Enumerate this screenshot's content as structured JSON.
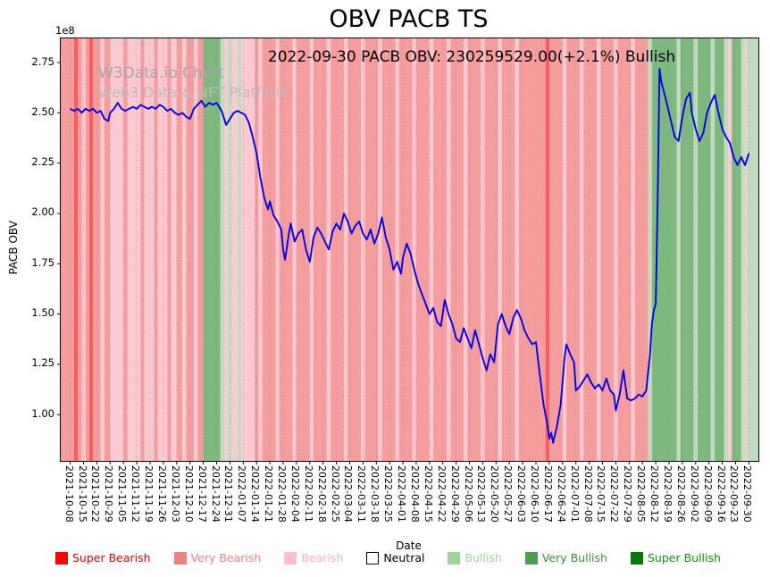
{
  "title": "OBV PACB TS",
  "annotation": "2022-09-30 PACB OBV: 230259529.00(+2.1%) Bullish",
  "watermark": {
    "line1": "W3Data.io Chart",
    "line2": "Web3 Data & NFT Platform"
  },
  "axes": {
    "ylabel": "PACB OBV",
    "xlabel": "Date",
    "offset_label": "1e8"
  },
  "legend": [
    {
      "label": "Super Bearish",
      "color": "#ff0000",
      "text_color": "#e60000"
    },
    {
      "label": "Very Bearish",
      "color": "#f08080",
      "text_color": "#f08080"
    },
    {
      "label": "Bearish",
      "color": "#ffc0cb",
      "text_color": "#ffaebc"
    },
    {
      "label": "Neutral",
      "color": "#ffffff",
      "text_color": "#000000"
    },
    {
      "label": "Bullish",
      "color": "#9fd49f",
      "text_color": "#9fd49f"
    },
    {
      "label": "Very Bullish",
      "color": "#4d9d4d",
      "text_color": "#3c8c3c"
    },
    {
      "label": "Super Bullish",
      "color": "#007d00",
      "text_color": "#0a960a"
    }
  ],
  "chart_data": {
    "type": "line",
    "title": "OBV PACB TS",
    "xlabel": "Date",
    "ylabel": "PACB OBV",
    "y_scale": "1e8",
    "line_color": "#0000ee",
    "grid": "vertical-dotted",
    "xlim": [
      -5,
      362
    ],
    "ylim": [
      0.77,
      2.87
    ],
    "yticks": [
      2.75,
      2.5,
      2.25,
      2.0,
      1.75,
      1.5,
      1.25,
      1.0
    ],
    "xtick_interval_days": 7,
    "xtick_labels": [
      "2021-10-08",
      "2021-10-15",
      "2021-10-22",
      "2021-10-29",
      "2021-11-05",
      "2021-11-12",
      "2021-11-19",
      "2021-11-26",
      "2021-12-03",
      "2021-12-10",
      "2021-12-17",
      "2021-12-24",
      "2021-12-31",
      "2022-01-07",
      "2022-01-14",
      "2022-01-21",
      "2022-01-28",
      "2022-02-04",
      "2022-02-11",
      "2022-02-18",
      "2022-02-25",
      "2022-03-04",
      "2022-03-11",
      "2022-03-18",
      "2022-03-25",
      "2022-04-01",
      "2022-04-08",
      "2022-04-15",
      "2022-04-22",
      "2022-04-29",
      "2022-05-06",
      "2022-05-13",
      "2022-05-20",
      "2022-05-27",
      "2022-06-03",
      "2022-06-10",
      "2022-06-17",
      "2022-06-24",
      "2022-07-01",
      "2022-07-08",
      "2022-07-15",
      "2022-07-22",
      "2022-07-29",
      "2022-08-05",
      "2022-08-12",
      "2022-08-19",
      "2022-08-26",
      "2022-09-02",
      "2022-09-09",
      "2022-09-16",
      "2022-09-23",
      "2022-09-30"
    ],
    "band_colors": {
      "super_bearish": "#ff5a5a",
      "very_bearish": "#f59c9c",
      "bearish": "#fbc9d0",
      "neutral": "#ffffff",
      "bullish": "#c0ddc0",
      "very_bullish": "#7db87d",
      "super_bullish": "#339933"
    },
    "bands": [
      [
        -5,
        2,
        "very_bearish"
      ],
      [
        2,
        4,
        "super_bearish"
      ],
      [
        4,
        6,
        "very_bearish"
      ],
      [
        6,
        8,
        "bearish"
      ],
      [
        8,
        10,
        "very_bearish"
      ],
      [
        10,
        12,
        "super_bearish"
      ],
      [
        12,
        16,
        "very_bearish"
      ],
      [
        16,
        18,
        "bearish"
      ],
      [
        18,
        21,
        "very_bearish"
      ],
      [
        21,
        28,
        "bearish"
      ],
      [
        28,
        30,
        "very_bearish"
      ],
      [
        30,
        37,
        "bearish"
      ],
      [
        37,
        39,
        "very_bearish"
      ],
      [
        39,
        44,
        "bearish"
      ],
      [
        44,
        46,
        "very_bearish"
      ],
      [
        46,
        51,
        "bearish"
      ],
      [
        51,
        53,
        "very_bearish"
      ],
      [
        53,
        56,
        "bearish"
      ],
      [
        56,
        59,
        "very_bearish"
      ],
      [
        59,
        61,
        "bearish"
      ],
      [
        61,
        65,
        "very_bearish"
      ],
      [
        65,
        67,
        "bearish"
      ],
      [
        67,
        70,
        "very_bearish"
      ],
      [
        70,
        79,
        "very_bullish"
      ],
      [
        79,
        81,
        "bullish"
      ],
      [
        81,
        83,
        "bearish"
      ],
      [
        83,
        85,
        "bullish"
      ],
      [
        85,
        88,
        "bearish"
      ],
      [
        88,
        90,
        "bullish"
      ],
      [
        90,
        97,
        "bearish"
      ],
      [
        97,
        99,
        "very_bearish"
      ],
      [
        99,
        101,
        "bearish"
      ],
      [
        101,
        108,
        "very_bearish"
      ],
      [
        108,
        110,
        "bearish"
      ],
      [
        110,
        117,
        "very_bearish"
      ],
      [
        117,
        119,
        "bearish"
      ],
      [
        119,
        126,
        "very_bearish"
      ],
      [
        126,
        128,
        "bearish"
      ],
      [
        128,
        135,
        "very_bearish"
      ],
      [
        135,
        137,
        "bearish"
      ],
      [
        137,
        144,
        "very_bearish"
      ],
      [
        144,
        146,
        "bearish"
      ],
      [
        146,
        153,
        "very_bearish"
      ],
      [
        153,
        155,
        "bearish"
      ],
      [
        155,
        162,
        "very_bearish"
      ],
      [
        162,
        164,
        "bearish"
      ],
      [
        164,
        171,
        "very_bearish"
      ],
      [
        171,
        173,
        "bearish"
      ],
      [
        173,
        180,
        "very_bearish"
      ],
      [
        180,
        182,
        "bearish"
      ],
      [
        182,
        189,
        "very_bearish"
      ],
      [
        189,
        191,
        "bearish"
      ],
      [
        191,
        198,
        "very_bearish"
      ],
      [
        198,
        200,
        "bearish"
      ],
      [
        200,
        207,
        "very_bearish"
      ],
      [
        207,
        209,
        "bearish"
      ],
      [
        209,
        216,
        "very_bearish"
      ],
      [
        216,
        218,
        "bearish"
      ],
      [
        218,
        225,
        "very_bearish"
      ],
      [
        225,
        227,
        "bearish"
      ],
      [
        227,
        234,
        "very_bearish"
      ],
      [
        234,
        236,
        "bearish"
      ],
      [
        236,
        250,
        "very_bearish"
      ],
      [
        250,
        252,
        "super_bearish"
      ],
      [
        252,
        259,
        "very_bearish"
      ],
      [
        259,
        261,
        "bearish"
      ],
      [
        261,
        268,
        "very_bearish"
      ],
      [
        268,
        270,
        "bearish"
      ],
      [
        270,
        277,
        "very_bearish"
      ],
      [
        277,
        279,
        "bearish"
      ],
      [
        279,
        286,
        "very_bearish"
      ],
      [
        286,
        288,
        "bearish"
      ],
      [
        288,
        295,
        "very_bearish"
      ],
      [
        295,
        297,
        "bearish"
      ],
      [
        297,
        304,
        "very_bearish"
      ],
      [
        304,
        306,
        "bullish"
      ],
      [
        306,
        319,
        "very_bullish"
      ],
      [
        319,
        321,
        "bullish"
      ],
      [
        321,
        328,
        "very_bullish"
      ],
      [
        328,
        330,
        "bullish"
      ],
      [
        330,
        337,
        "very_bullish"
      ],
      [
        337,
        339,
        "bullish"
      ],
      [
        339,
        344,
        "very_bullish"
      ],
      [
        344,
        346,
        "bullish"
      ],
      [
        346,
        348,
        "bearish"
      ],
      [
        348,
        353,
        "very_bullish"
      ],
      [
        353,
        355,
        "bullish"
      ],
      [
        355,
        356,
        "bearish"
      ],
      [
        356,
        362,
        "bullish"
      ]
    ],
    "points": [
      [
        0,
        2.52
      ],
      [
        2,
        2.51
      ],
      [
        4,
        2.52
      ],
      [
        6,
        2.5
      ],
      [
        8,
        2.52
      ],
      [
        10,
        2.51
      ],
      [
        12,
        2.52
      ],
      [
        14,
        2.5
      ],
      [
        16,
        2.51
      ],
      [
        18,
        2.47
      ],
      [
        20,
        2.46
      ],
      [
        21,
        2.5
      ],
      [
        23,
        2.52
      ],
      [
        25,
        2.55
      ],
      [
        27,
        2.52
      ],
      [
        29,
        2.51
      ],
      [
        31,
        2.52
      ],
      [
        33,
        2.53
      ],
      [
        35,
        2.52
      ],
      [
        37,
        2.54
      ],
      [
        39,
        2.53
      ],
      [
        41,
        2.52
      ],
      [
        43,
        2.53
      ],
      [
        45,
        2.52
      ],
      [
        47,
        2.54
      ],
      [
        49,
        2.53
      ],
      [
        51,
        2.51
      ],
      [
        53,
        2.52
      ],
      [
        55,
        2.5
      ],
      [
        57,
        2.49
      ],
      [
        59,
        2.5
      ],
      [
        61,
        2.48
      ],
      [
        63,
        2.47
      ],
      [
        65,
        2.52
      ],
      [
        67,
        2.54
      ],
      [
        69,
        2.56
      ],
      [
        71,
        2.53
      ],
      [
        73,
        2.55
      ],
      [
        75,
        2.54
      ],
      [
        77,
        2.55
      ],
      [
        79,
        2.52
      ],
      [
        80,
        2.5
      ],
      [
        82,
        2.44
      ],
      [
        84,
        2.47
      ],
      [
        86,
        2.5
      ],
      [
        88,
        2.51
      ],
      [
        90,
        2.5
      ],
      [
        92,
        2.49
      ],
      [
        94,
        2.45
      ],
      [
        96,
        2.38
      ],
      [
        98,
        2.3
      ],
      [
        100,
        2.18
      ],
      [
        102,
        2.08
      ],
      [
        104,
        2.02
      ],
      [
        105,
        2.06
      ],
      [
        107,
        1.99
      ],
      [
        109,
        1.96
      ],
      [
        111,
        1.92
      ],
      [
        112,
        1.82
      ],
      [
        113,
        1.77
      ],
      [
        115,
        1.9
      ],
      [
        116,
        1.95
      ],
      [
        118,
        1.86
      ],
      [
        120,
        1.9
      ],
      [
        122,
        1.92
      ],
      [
        124,
        1.82
      ],
      [
        126,
        1.76
      ],
      [
        128,
        1.88
      ],
      [
        130,
        1.93
      ],
      [
        132,
        1.9
      ],
      [
        134,
        1.86
      ],
      [
        136,
        1.82
      ],
      [
        138,
        1.91
      ],
      [
        140,
        1.95
      ],
      [
        142,
        1.92
      ],
      [
        144,
        2.0
      ],
      [
        146,
        1.96
      ],
      [
        148,
        1.9
      ],
      [
        150,
        1.94
      ],
      [
        152,
        1.96
      ],
      [
        154,
        1.9
      ],
      [
        156,
        1.87
      ],
      [
        158,
        1.92
      ],
      [
        160,
        1.85
      ],
      [
        162,
        1.9
      ],
      [
        164,
        1.98
      ],
      [
        166,
        1.88
      ],
      [
        168,
        1.82
      ],
      [
        170,
        1.72
      ],
      [
        172,
        1.76
      ],
      [
        174,
        1.7
      ],
      [
        175,
        1.78
      ],
      [
        177,
        1.85
      ],
      [
        179,
        1.8
      ],
      [
        181,
        1.72
      ],
      [
        183,
        1.65
      ],
      [
        185,
        1.6
      ],
      [
        187,
        1.55
      ],
      [
        189,
        1.5
      ],
      [
        191,
        1.53
      ],
      [
        193,
        1.46
      ],
      [
        195,
        1.44
      ],
      [
        197,
        1.57
      ],
      [
        199,
        1.5
      ],
      [
        201,
        1.45
      ],
      [
        203,
        1.38
      ],
      [
        205,
        1.36
      ],
      [
        207,
        1.43
      ],
      [
        209,
        1.38
      ],
      [
        211,
        1.33
      ],
      [
        213,
        1.42
      ],
      [
        215,
        1.35
      ],
      [
        217,
        1.28
      ],
      [
        219,
        1.22
      ],
      [
        221,
        1.3
      ],
      [
        223,
        1.26
      ],
      [
        225,
        1.45
      ],
      [
        227,
        1.5
      ],
      [
        229,
        1.44
      ],
      [
        231,
        1.4
      ],
      [
        233,
        1.48
      ],
      [
        235,
        1.52
      ],
      [
        237,
        1.48
      ],
      [
        239,
        1.42
      ],
      [
        241,
        1.38
      ],
      [
        243,
        1.35
      ],
      [
        245,
        1.36
      ],
      [
        247,
        1.2
      ],
      [
        249,
        1.05
      ],
      [
        251,
        0.95
      ],
      [
        252,
        0.88
      ],
      [
        253,
        0.91
      ],
      [
        254,
        0.86
      ],
      [
        256,
        0.94
      ],
      [
        258,
        1.05
      ],
      [
        260,
        1.28
      ],
      [
        261,
        1.35
      ],
      [
        263,
        1.3
      ],
      [
        265,
        1.26
      ],
      [
        266,
        1.12
      ],
      [
        268,
        1.14
      ],
      [
        270,
        1.17
      ],
      [
        272,
        1.2
      ],
      [
        274,
        1.16
      ],
      [
        276,
        1.13
      ],
      [
        278,
        1.15
      ],
      [
        280,
        1.12
      ],
      [
        282,
        1.18
      ],
      [
        284,
        1.12
      ],
      [
        286,
        1.1
      ],
      [
        287,
        1.02
      ],
      [
        289,
        1.1
      ],
      [
        291,
        1.22
      ],
      [
        293,
        1.08
      ],
      [
        295,
        1.07
      ],
      [
        297,
        1.08
      ],
      [
        299,
        1.1
      ],
      [
        301,
        1.09
      ],
      [
        303,
        1.12
      ],
      [
        305,
        1.3
      ],
      [
        306,
        1.45
      ],
      [
        307,
        1.52
      ],
      [
        308,
        1.55
      ],
      [
        309,
        2.05
      ],
      [
        310,
        2.72
      ],
      [
        311,
        2.65
      ],
      [
        313,
        2.58
      ],
      [
        315,
        2.5
      ],
      [
        317,
        2.42
      ],
      [
        318,
        2.38
      ],
      [
        320,
        2.36
      ],
      [
        322,
        2.48
      ],
      [
        324,
        2.57
      ],
      [
        326,
        2.6
      ],
      [
        327,
        2.5
      ],
      [
        329,
        2.42
      ],
      [
        331,
        2.36
      ],
      [
        333,
        2.4
      ],
      [
        335,
        2.5
      ],
      [
        337,
        2.55
      ],
      [
        339,
        2.59
      ],
      [
        341,
        2.5
      ],
      [
        343,
        2.42
      ],
      [
        345,
        2.38
      ],
      [
        347,
        2.35
      ],
      [
        349,
        2.28
      ],
      [
        351,
        2.24
      ],
      [
        353,
        2.28
      ],
      [
        355,
        2.24
      ],
      [
        357,
        2.3
      ]
    ]
  }
}
